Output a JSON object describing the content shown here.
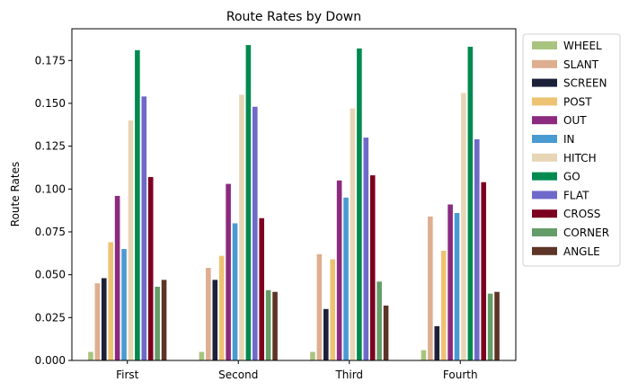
{
  "chart_data": {
    "type": "bar",
    "title": "Route Rates by Down",
    "xlabel": "",
    "ylabel": "Route Rates",
    "categories": [
      "First",
      "Second",
      "Third",
      "Fourth"
    ],
    "ylim": [
      0,
      0.1935
    ],
    "yticks": [
      0.0,
      0.025,
      0.05,
      0.075,
      0.1,
      0.125,
      0.15,
      0.175
    ],
    "ytick_labels": [
      "0.000",
      "0.025",
      "0.050",
      "0.075",
      "0.100",
      "0.125",
      "0.150",
      "0.175"
    ],
    "grid": false,
    "legend_position": "outside-right",
    "series": [
      {
        "name": "WHEEL",
        "color": "#a9c47f",
        "values": [
          0.005,
          0.005,
          0.005,
          0.006
        ]
      },
      {
        "name": "SLANT",
        "color": "#dfae90",
        "values": [
          0.045,
          0.054,
          0.062,
          0.084
        ]
      },
      {
        "name": "SCREEN",
        "color": "#1c2039",
        "values": [
          0.048,
          0.047,
          0.03,
          0.02
        ]
      },
      {
        "name": "POST",
        "color": "#eec273",
        "values": [
          0.069,
          0.061,
          0.059,
          0.064
        ]
      },
      {
        "name": "OUT",
        "color": "#8b2a7e",
        "values": [
          0.096,
          0.103,
          0.105,
          0.091
        ]
      },
      {
        "name": "IN",
        "color": "#4a9ad2",
        "values": [
          0.065,
          0.08,
          0.095,
          0.086
        ]
      },
      {
        "name": "HITCH",
        "color": "#e7d6b5",
        "values": [
          0.14,
          0.155,
          0.147,
          0.156
        ]
      },
      {
        "name": "GO",
        "color": "#008a50",
        "values": [
          0.181,
          0.184,
          0.182,
          0.183
        ]
      },
      {
        "name": "FLAT",
        "color": "#6f69ca",
        "values": [
          0.154,
          0.148,
          0.13,
          0.129
        ]
      },
      {
        "name": "CROSS",
        "color": "#7c0020",
        "values": [
          0.107,
          0.083,
          0.108,
          0.104
        ]
      },
      {
        "name": "CORNER",
        "color": "#659d68",
        "values": [
          0.043,
          0.041,
          0.046,
          0.039
        ]
      },
      {
        "name": "ANGLE",
        "color": "#5d3426",
        "values": [
          0.047,
          0.04,
          0.032,
          0.04
        ]
      }
    ]
  }
}
